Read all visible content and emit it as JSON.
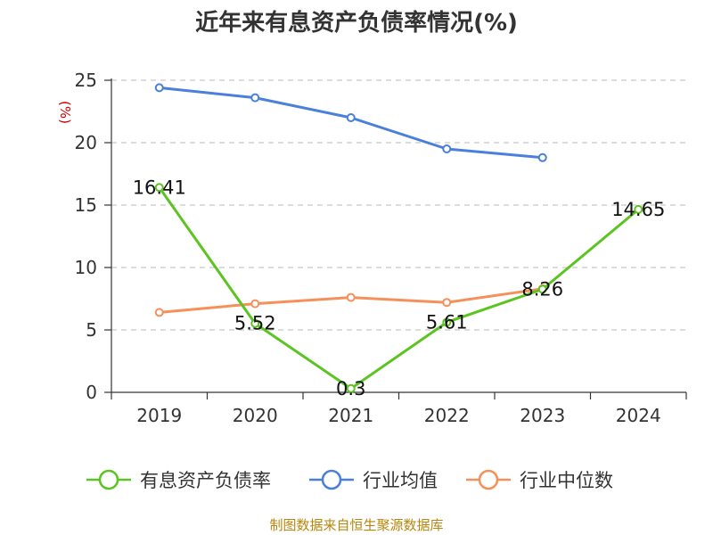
{
  "chart_data": {
    "type": "line",
    "title": "近年来有息资产负债率情况(%)",
    "unit_label": "(%)",
    "categories": [
      "2019",
      "2020",
      "2021",
      "2022",
      "2023",
      "2024"
    ],
    "ylim": [
      0,
      25
    ],
    "yticks": [
      0,
      5,
      10,
      15,
      20,
      25
    ],
    "grid": true,
    "legend_position": "bottom",
    "series": [
      {
        "name": "有息资产负债率",
        "color": "#5cc421",
        "values": [
          16.41,
          5.52,
          0.3,
          5.61,
          8.26,
          14.65
        ],
        "labels": [
          "16.41",
          "5.52",
          "0.3",
          "5.61",
          "8.26",
          "14.65"
        ]
      },
      {
        "name": "行业均值",
        "color": "#4a7fdc",
        "values": [
          24.4,
          23.6,
          22.0,
          19.5,
          18.8,
          null
        ]
      },
      {
        "name": "行业中位数",
        "color": "#f5905a",
        "values": [
          6.4,
          7.1,
          7.6,
          7.2,
          8.3,
          null
        ]
      }
    ]
  },
  "source": "制图数据来自恒生聚源数据库"
}
